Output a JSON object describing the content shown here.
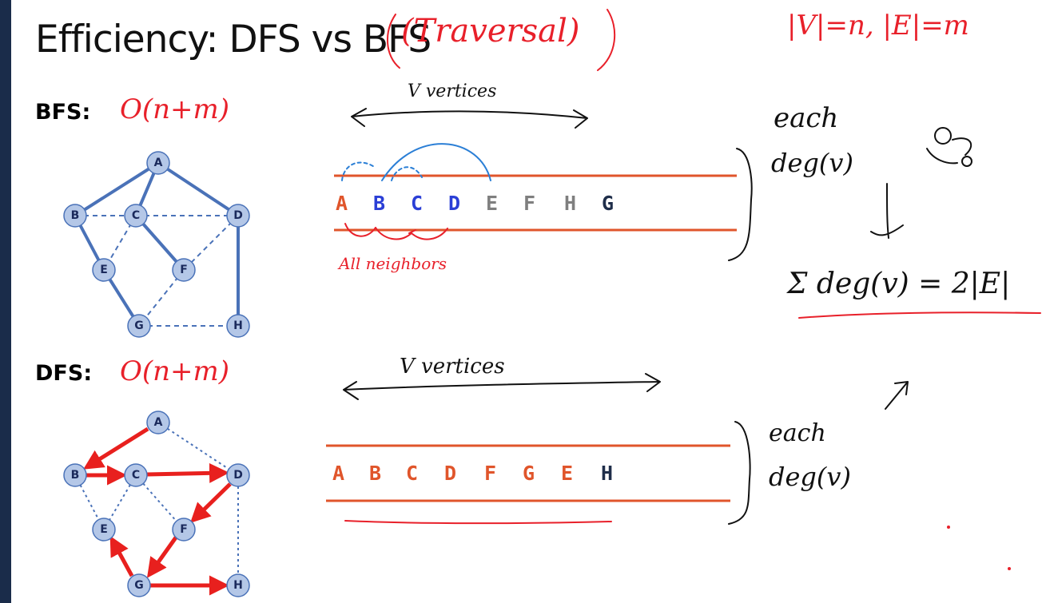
{
  "slide": {
    "title": "Efficiency: DFS vs BFS",
    "bfs_label": "BFS",
    "dfs_label": "DFS",
    "colon": ":"
  },
  "graph": {
    "nodes": [
      "A",
      "B",
      "C",
      "D",
      "E",
      "F",
      "G",
      "H"
    ]
  },
  "bfs_order": [
    {
      "letter": "A",
      "color": "#e0552b"
    },
    {
      "letter": "B",
      "color": "#2b3fd6"
    },
    {
      "letter": "C",
      "color": "#2b3fd6"
    },
    {
      "letter": "D",
      "color": "#2b3fd6"
    },
    {
      "letter": "E",
      "color": "#7f7f7f"
    },
    {
      "letter": "F",
      "color": "#7f7f7f"
    },
    {
      "letter": "H",
      "color": "#7f7f7f"
    },
    {
      "letter": "G",
      "color": "#1f2e4a"
    }
  ],
  "dfs_order": [
    {
      "letter": "A",
      "color": "#e0552b"
    },
    {
      "letter": "B",
      "color": "#e0552b"
    },
    {
      "letter": "C",
      "color": "#e0552b"
    },
    {
      "letter": "D",
      "color": "#e0552b"
    },
    {
      "letter": "F",
      "color": "#e0552b"
    },
    {
      "letter": "G",
      "color": "#e0552b"
    },
    {
      "letter": "E",
      "color": "#e0552b"
    },
    {
      "letter": "H",
      "color": "#1f2e4a"
    }
  ],
  "annotations": {
    "traversal": "(Traversal)",
    "sizes": "|V|=n, |E|=m",
    "bfs_complexity": "O(n+m)",
    "dfs_complexity": "O(n+m)",
    "v_vertices_top": "V vertices",
    "v_vertices_bottom": "V vertices",
    "all_neighbors": "All neighbors",
    "each_top": "each",
    "deg_top": "deg(v)",
    "sum_formula": "Σ deg(v) = 2|E|",
    "each_bottom": "each",
    "deg_bottom": "deg(v)"
  },
  "colors": {
    "graph_blue": "#4a72b8",
    "node_fill": "#b4c7e7",
    "dfs_red": "#e8201e",
    "order_line": "#e0552b",
    "ink_red": "#e8202a",
    "ink_blue": "#2b7fd6"
  }
}
